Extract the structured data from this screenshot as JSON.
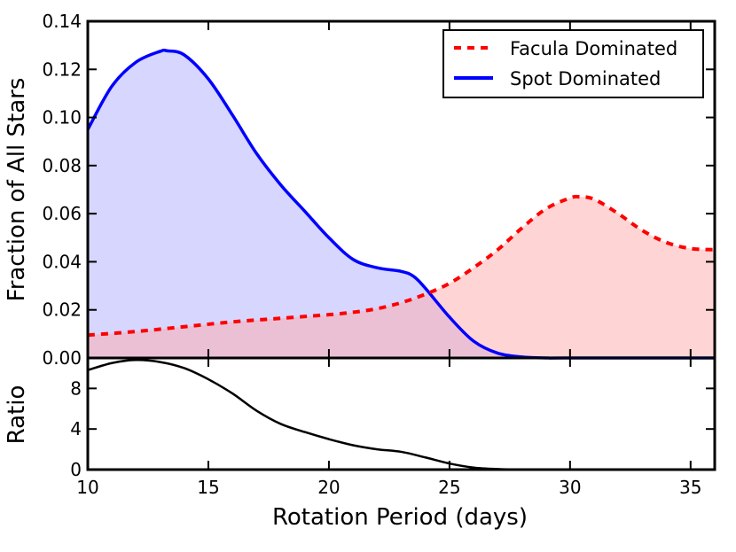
{
  "chart_data": [
    {
      "type": "area",
      "panel": "top",
      "xlabel": "",
      "ylabel": "Fraction of All Stars",
      "xlim": [
        10,
        36
      ],
      "ylim": [
        0,
        0.14
      ],
      "yticks": [
        0.0,
        0.02,
        0.04,
        0.06,
        0.08,
        0.1,
        0.12,
        0.14
      ],
      "ytick_labels": [
        "0.00",
        "0.02",
        "0.04",
        "0.06",
        "0.08",
        "0.10",
        "0.12",
        "0.14"
      ],
      "legend_position": "top-right",
      "series": [
        {
          "name": "Facula Dominated",
          "color": "#ff0000",
          "fill": "#ffd6d6",
          "linestyle": "dashed",
          "x": [
            10,
            12,
            14,
            16,
            18,
            20,
            21,
            22,
            23,
            24,
            25,
            26,
            27,
            28,
            29,
            30,
            30.4,
            31,
            32,
            33,
            34,
            35,
            36
          ],
          "y": [
            0.0095,
            0.011,
            0.013,
            0.015,
            0.0165,
            0.018,
            0.019,
            0.0205,
            0.023,
            0.0265,
            0.031,
            0.0375,
            0.045,
            0.054,
            0.062,
            0.0665,
            0.067,
            0.066,
            0.06,
            0.053,
            0.048,
            0.0455,
            0.045
          ]
        },
        {
          "name": "Spot Dominated",
          "color": "#0000ff",
          "fill": "#d6d6ff",
          "linestyle": "solid",
          "x": [
            10,
            11,
            12,
            13,
            13.3,
            14,
            15,
            16,
            17,
            18,
            19,
            20,
            21,
            22,
            23,
            23.5,
            24,
            25,
            26,
            27,
            28,
            29,
            30,
            36
          ],
          "y": [
            0.095,
            0.113,
            0.123,
            0.1275,
            0.1277,
            0.126,
            0.116,
            0.101,
            0.085,
            0.072,
            0.061,
            0.05,
            0.041,
            0.0375,
            0.036,
            0.034,
            0.029,
            0.017,
            0.007,
            0.002,
            0.0004,
            0.0,
            0.0,
            0.0
          ]
        }
      ]
    },
    {
      "type": "line",
      "panel": "bottom",
      "xlabel": "Rotation Period (days)",
      "ylabel": "Ratio",
      "xlim": [
        10,
        36
      ],
      "ylim": [
        0,
        11
      ],
      "xticks": [
        10,
        15,
        20,
        25,
        30,
        35
      ],
      "xtick_labels": [
        "10",
        "15",
        "20",
        "25",
        "30",
        "35"
      ],
      "yticks": [
        0,
        4,
        8
      ],
      "ytick_labels": [
        "0",
        "4",
        "8"
      ],
      "series": [
        {
          "name": "Ratio",
          "color": "#000000",
          "x": [
            10,
            11,
            12,
            13,
            14,
            15,
            16,
            17,
            18,
            19,
            20,
            21,
            22,
            23,
            24,
            25,
            26,
            27,
            28,
            30,
            36
          ],
          "y": [
            9.8,
            10.5,
            10.8,
            10.6,
            10.0,
            8.9,
            7.5,
            5.8,
            4.5,
            3.7,
            3.0,
            2.4,
            2.0,
            1.75,
            1.2,
            0.6,
            0.2,
            0.05,
            0.0,
            0.0,
            0.0
          ]
        }
      ]
    }
  ]
}
